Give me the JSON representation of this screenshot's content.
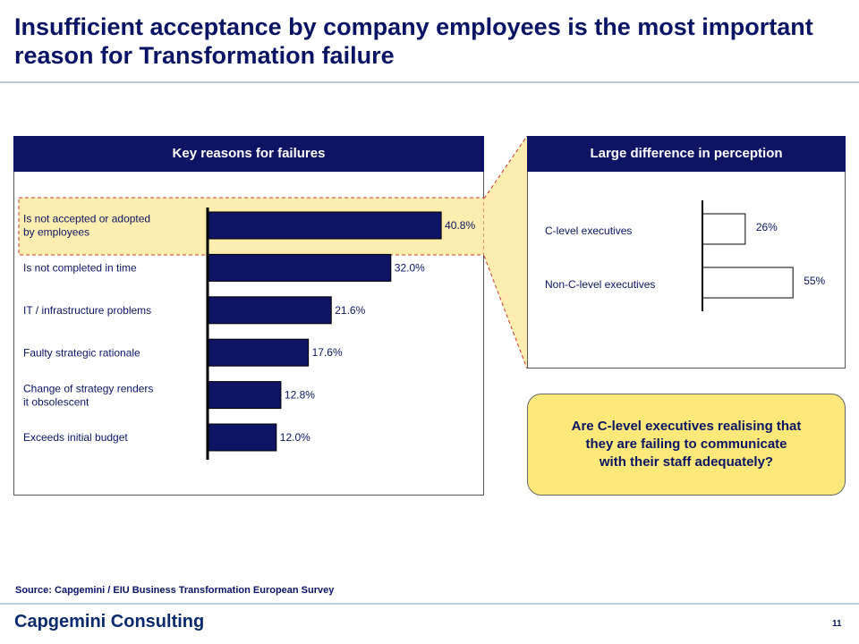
{
  "title": "Insufficient acceptance by company employees is the most important reason for Transformation failure",
  "left_panel": {
    "header": "Key reasons for failures"
  },
  "right_panel": {
    "header": "Large difference in perception"
  },
  "callout": {
    "text": "Are C-level executives realising that\nthey are failing to communicate\nwith their staff adequately?"
  },
  "source": "Source: Capgemini / EIU Business Transformation European Survey",
  "brand": "Capgemini Consulting",
  "page_number": "11",
  "colors": {
    "bar": "#0f1363",
    "header": "#0f1363",
    "highlight": "#fdeeb0",
    "callout": "#fde97a",
    "dashed": "#cc3b2e"
  },
  "chart_data": [
    {
      "type": "bar",
      "orientation": "horizontal",
      "title": "Key reasons for failures",
      "categories": [
        "Is not accepted or adopted\nby employees",
        "Is not completed in time",
        "IT / infrastructure problems",
        "Faulty strategic rationale",
        "Change of strategy renders\nit obsolescent",
        "Exceeds initial budget"
      ],
      "values": [
        40.8,
        32.0,
        21.6,
        17.6,
        12.8,
        12.0
      ],
      "value_labels": [
        "40.8%",
        "32.0%",
        "21.6%",
        "17.6%",
        "12.8%",
        "12.0%"
      ],
      "highlighted_category": 0
    },
    {
      "type": "bar",
      "orientation": "horizontal",
      "title": "Large difference in perception",
      "categories": [
        "C-level executives",
        "Non-C-level executives"
      ],
      "values": [
        26,
        55
      ],
      "value_labels": [
        "26%",
        "55%"
      ]
    }
  ]
}
